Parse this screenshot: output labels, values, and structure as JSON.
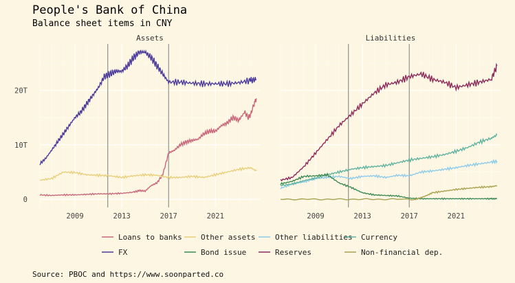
{
  "chart_data": {
    "type": "line",
    "title": "People's Bank of China",
    "subtitle": "Balance sheet items in CNY",
    "source": "Source: PBOC and https://www.soonparted.co",
    "x_ticks": [
      "2009",
      "2013",
      "2017",
      "2021"
    ],
    "y_ticks": [
      "0",
      "10T",
      "20T"
    ],
    "xlim": [
      2006.0,
      2024.8
    ],
    "ylim": [
      -1.5,
      28.5
    ],
    "vlines": [
      2011.8,
      2017.0
    ],
    "legend_position": "bottom",
    "panels": [
      {
        "title": "Assets",
        "series": [
          {
            "name": "Loans to banks",
            "color": "#c9677a",
            "x": [
              2006.0,
              2007.0,
              2008.0,
              2009.0,
              2010.0,
              2011.0,
              2012.0,
              2013.0,
              2014.0,
              2014.5,
              2015.0,
              2015.5,
              2016.0,
              2016.5,
              2017.0,
              2017.5,
              2018.0,
              2018.5,
              2019.0,
              2019.5,
              2020.0,
              2020.5,
              2021.0,
              2021.5,
              2022.0,
              2022.5,
              2023.0,
              2023.5,
              2023.8,
              2024.0,
              2024.3,
              2024.5
            ],
            "values": [
              0.8,
              0.7,
              0.8,
              0.8,
              0.9,
              1.0,
              1.0,
              1.1,
              1.3,
              1.6,
              1.5,
              2.5,
              3.0,
              4.5,
              8.5,
              9.0,
              10.0,
              10.5,
              10.8,
              11.0,
              12.0,
              12.5,
              12.5,
              13.5,
              14.0,
              15.0,
              14.5,
              16.0,
              15.0,
              15.5,
              17.5,
              18.5
            ]
          },
          {
            "name": "Other assets",
            "color": "#e8cf7a",
            "x": [
              2006.0,
              2007.0,
              2008.0,
              2009.0,
              2010.0,
              2011.0,
              2012.0,
              2013.0,
              2014.0,
              2015.0,
              2016.0,
              2017.0,
              2018.0,
              2019.0,
              2020.0,
              2021.0,
              2022.0,
              2023.0,
              2024.0,
              2024.5
            ],
            "values": [
              3.5,
              3.8,
              5.0,
              4.9,
              4.5,
              4.4,
              4.3,
              4.0,
              4.3,
              4.5,
              4.4,
              4.0,
              4.0,
              4.2,
              4.0,
              4.5,
              5.0,
              5.5,
              5.8,
              5.2
            ]
          },
          {
            "name": "FX",
            "color": "#4b3a9a",
            "x": [
              2006.0,
              2006.5,
              2007.0,
              2007.5,
              2008.0,
              2008.5,
              2009.0,
              2009.5,
              2010.0,
              2010.5,
              2011.0,
              2011.5,
              2012.0,
              2012.5,
              2013.0,
              2013.5,
              2014.0,
              2014.5,
              2015.0,
              2015.5,
              2016.0,
              2016.5,
              2017.0,
              2018.0,
              2019.0,
              2020.0,
              2021.0,
              2022.0,
              2023.0,
              2024.0,
              2024.5
            ],
            "values": [
              6.5,
              7.5,
              9.0,
              10.5,
              12.0,
              13.5,
              15.0,
              16.0,
              17.5,
              19.0,
              20.5,
              22.5,
              23.0,
              23.5,
              23.5,
              24.5,
              26.0,
              27.0,
              27.0,
              26.0,
              24.5,
              23.0,
              21.5,
              21.5,
              21.3,
              21.2,
              21.2,
              21.2,
              21.4,
              21.8,
              22.0
            ]
          }
        ]
      },
      {
        "title": "Liabilities",
        "series": [
          {
            "name": "Other liabilities",
            "color": "#8ccbea",
            "x": [
              2006.0,
              2007.0,
              2008.0,
              2009.0,
              2010.0,
              2011.0,
              2012.0,
              2013.0,
              2014.0,
              2015.0,
              2016.0,
              2017.0,
              2018.0,
              2019.0,
              2020.0,
              2021.0,
              2022.0,
              2023.0,
              2024.0,
              2024.5
            ],
            "values": [
              2.0,
              2.8,
              3.2,
              3.8,
              4.0,
              4.2,
              3.8,
              4.2,
              4.3,
              4.0,
              4.4,
              4.3,
              5.0,
              5.2,
              5.5,
              5.8,
              6.2,
              6.5,
              6.8,
              7.0
            ]
          },
          {
            "name": "Currency",
            "color": "#5fb3a0",
            "x": [
              2006.0,
              2007.0,
              2008.0,
              2009.0,
              2010.0,
              2011.0,
              2012.0,
              2013.0,
              2014.0,
              2015.0,
              2016.0,
              2017.0,
              2018.0,
              2019.0,
              2020.0,
              2021.0,
              2022.0,
              2023.0,
              2024.0,
              2024.5
            ],
            "values": [
              2.5,
              2.8,
              3.4,
              3.9,
              4.5,
              5.0,
              5.5,
              5.8,
              6.0,
              6.2,
              6.7,
              7.2,
              7.5,
              7.8,
              8.2,
              8.8,
              9.5,
              10.5,
              11.2,
              11.8
            ]
          },
          {
            "name": "Bond issue",
            "color": "#3d8a52",
            "x": [
              2006.0,
              2007.0,
              2008.0,
              2009.0,
              2010.0,
              2011.0,
              2012.0,
              2013.0,
              2014.0,
              2015.0,
              2016.0,
              2017.0,
              2018.0,
              2019.0,
              2020.0,
              2021.0,
              2022.0,
              2023.0,
              2024.0,
              2024.5
            ],
            "values": [
              2.8,
              3.3,
              4.2,
              4.3,
              4.5,
              3.0,
              2.2,
              1.2,
              0.8,
              0.7,
              0.6,
              0.2,
              0.1,
              0.1,
              0.1,
              0.1,
              0.1,
              0.1,
              0.1,
              0.1
            ]
          },
          {
            "name": "Reserves",
            "color": "#8c2a5a",
            "x": [
              2006.0,
              2007.0,
              2008.0,
              2009.0,
              2010.0,
              2011.0,
              2012.0,
              2013.0,
              2014.0,
              2015.0,
              2016.0,
              2017.0,
              2018.0,
              2019.0,
              2020.0,
              2021.0,
              2022.0,
              2023.0,
              2024.0,
              2024.5
            ],
            "values": [
              3.5,
              4.0,
              6.0,
              8.5,
              11.0,
              13.5,
              15.5,
              17.5,
              19.5,
              21.0,
              21.5,
              22.5,
              23.0,
              22.0,
              21.5,
              20.5,
              21.0,
              21.5,
              22.0,
              24.5
            ]
          },
          {
            "name": "Non-financial dep.",
            "color": "#a9a14e",
            "x": [
              2006.0,
              2008.0,
              2010.0,
              2012.0,
              2014.0,
              2016.0,
              2017.5,
              2018.0,
              2018.5,
              2019.0,
              2020.0,
              2021.0,
              2022.0,
              2023.0,
              2024.0,
              2024.5
            ],
            "values": [
              0.0,
              0.0,
              0.0,
              0.0,
              0.0,
              0.0,
              0.0,
              0.3,
              0.7,
              1.2,
              1.5,
              1.8,
              2.0,
              2.2,
              2.3,
              2.5
            ]
          }
        ]
      }
    ],
    "legend": [
      "Loans to banks",
      "Other assets",
      "Other liabilities",
      "Currency",
      "FX",
      "Bond issue",
      "Reserves",
      "Non-financial dep."
    ]
  }
}
